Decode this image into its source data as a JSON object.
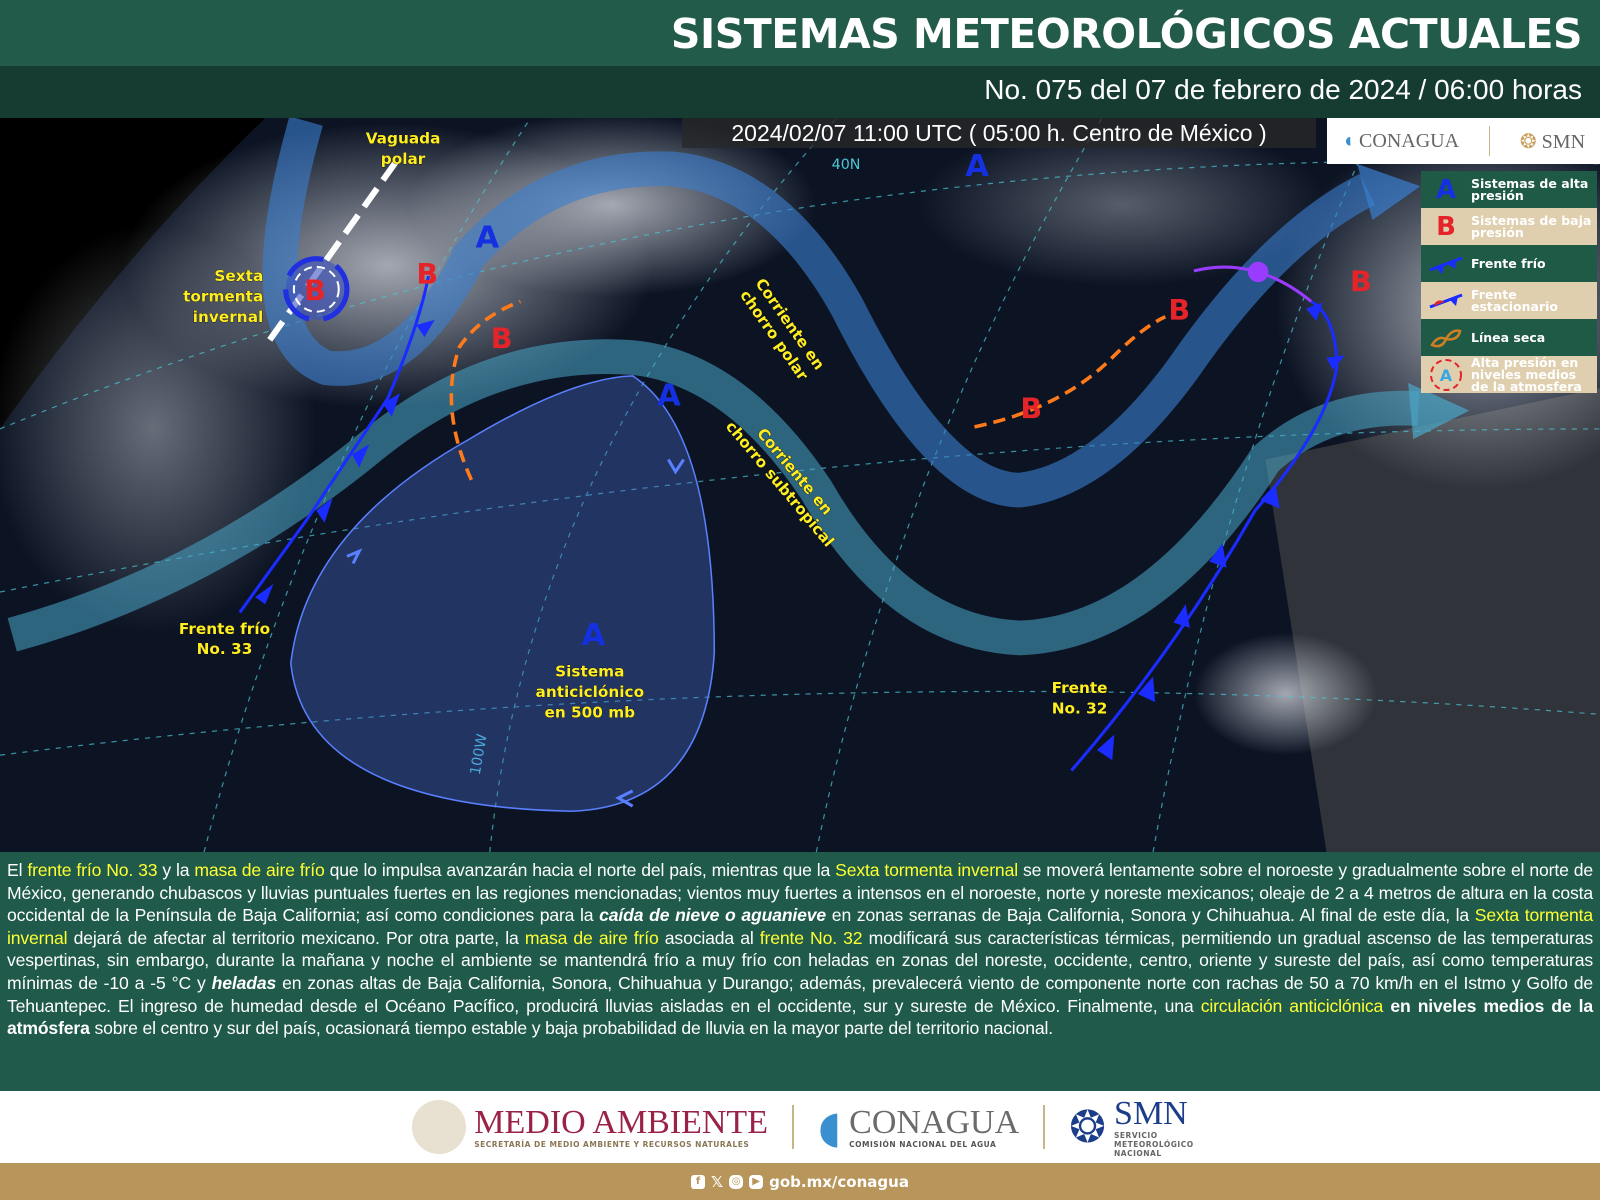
{
  "header": {
    "title": "SISTEMAS METEOROLÓGICOS ACTUALES",
    "subtitle": "No. 075 del 07 de febrero de 2024 / 06:00 horas"
  },
  "map": {
    "timestamp": "2024/02/07 11:00 UTC ( 05:00 h. Centro de México )",
    "labels": {
      "vaguada": [
        "Vaguada",
        "polar"
      ],
      "sexta": [
        "Sexta",
        "tormenta",
        "invernal"
      ],
      "frente33": [
        "Frente frío",
        "No. 33"
      ],
      "anticiclon": [
        "Sistema",
        "anticiclónico",
        "en 500 mb"
      ],
      "frente32": [
        "Frente",
        "No. 32"
      ],
      "polar_jet": [
        "Corriente en",
        "chorro polar"
      ],
      "subtrop_jet": [
        "Corriente en",
        "chorro subtropical"
      ]
    },
    "high": "A",
    "low": "B",
    "grid_labels": [
      "40N",
      "100W"
    ],
    "colors": {
      "high": "#1530e0",
      "low": "#e5242a",
      "jet": "#3a7fd0",
      "dry_line": "#ff7a1a",
      "cold_front": "#1a2cff",
      "stationary": "#9a3cff"
    }
  },
  "logos_top": [
    "CONAGUA",
    "SMN"
  ],
  "legend": [
    {
      "icon": "A",
      "label": "Sistemas de alta presión"
    },
    {
      "icon": "B",
      "label": "Sistemas de baja presión"
    },
    {
      "icon": "cold-front",
      "label": "Frente frío"
    },
    {
      "icon": "stationary-front",
      "label": "Frente estacionario"
    },
    {
      "icon": "dry-line",
      "label": "Línea seca"
    },
    {
      "icon": "A",
      "label": "Alta presión en niveles medios de la atmosfera"
    }
  ],
  "paragraph": [
    {
      "t": "El ",
      "s": ""
    },
    {
      "t": "frente frío No. 33",
      "s": "hl"
    },
    {
      "t": " y la ",
      "s": ""
    },
    {
      "t": "masa de aire frío",
      "s": "hl"
    },
    {
      "t": " que lo impulsa avanzarán hacia el norte del país, mientras que la ",
      "s": ""
    },
    {
      "t": "Sexta tormenta invernal",
      "s": "hl"
    },
    {
      "t": " se moverá lentamente sobre el noroeste y gradualmente sobre el norte de México, generando chubascos y lluvias puntuales fuertes en las regiones mencionadas; vientos muy fuertes a intensos en el noroeste, norte y noreste mexicanos; oleaje de 2 a 4 metros de altura en la costa occidental de la Península de Baja California; así como condiciones para la ",
      "s": ""
    },
    {
      "t": "caída de nieve o aguanieve",
      "s": "it"
    },
    {
      "t": " en zonas serranas de Baja California, Sonora y Chihuahua. Al final de este día, la ",
      "s": ""
    },
    {
      "t": "Sexta tormenta invernal",
      "s": "hl"
    },
    {
      "t": " dejará de afectar al territorio mexicano. Por otra parte, la ",
      "s": ""
    },
    {
      "t": "masa de aire frío",
      "s": "hl"
    },
    {
      "t": " asociada al ",
      "s": ""
    },
    {
      "t": "frente No. 32",
      "s": "hl"
    },
    {
      "t": " modificará sus características térmicas, permitiendo un gradual ascenso de las temperaturas vespertinas, sin embargo, durante la mañana y noche el ambiente se mantendrá frío a muy frío con heladas en zonas del noreste, occidente, centro, oriente y sureste del país, así como temperaturas mínimas de -10 a -5 °C y ",
      "s": ""
    },
    {
      "t": "heladas",
      "s": "it"
    },
    {
      "t": " en zonas altas de Baja California, Sonora, Chihuahua y Durango; además, prevalecerá viento de componente norte con rachas de 50 a 70 km/h en el Istmo y Golfo de Tehuantepec. El ingreso de humedad desde el Océano Pacífico, producirá lluvias aisladas en el occidente, sur y sureste de México. Finalmente, una ",
      "s": ""
    },
    {
      "t": "circulación anticiclónica",
      "s": "hl"
    },
    {
      "t": " en niveles medios de la atmósfera",
      "s": "b"
    },
    {
      "t": " sobre el centro y sur del país, ocasionará tiempo estable y baja probabilidad de lluvia en la mayor parte del territorio nacional.",
      "s": ""
    }
  ],
  "footer": {
    "medio_ambiente": {
      "name": "MEDIO AMBIENTE",
      "sub": "SECRETARÍA DE MEDIO AMBIENTE Y RECURSOS NATURALES"
    },
    "conagua": {
      "name": "CONAGUA",
      "sub": "COMISIÓN NACIONAL DEL AGUA"
    },
    "smn": {
      "name": "SMN",
      "sub": "SERVICIO METEOROLÓGICO NACIONAL"
    },
    "social_icons": [
      "facebook-icon",
      "x-icon",
      "instagram-icon",
      "youtube-icon"
    ],
    "url": "gob.mx/conagua"
  }
}
